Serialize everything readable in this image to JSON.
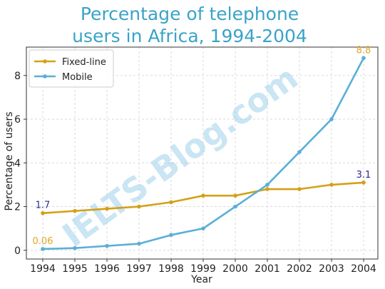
{
  "chart_data": {
    "type": "line",
    "title_lines": [
      "Percentage of telephone",
      "users in Africa, 1994-2004"
    ],
    "xlabel": "Year",
    "ylabel": "Percentage of users",
    "x": [
      1994,
      1995,
      1996,
      1997,
      1998,
      1999,
      2000,
      2001,
      2002,
      2003,
      2004
    ],
    "yticks": [
      0,
      2,
      4,
      6,
      8
    ],
    "ylim": [
      -0.4,
      9.3
    ],
    "grid": true,
    "legend_position": "top-left",
    "series": [
      {
        "name": "Fixed-line",
        "color": "#d4a017",
        "values": [
          1.7,
          1.8,
          1.9,
          2.0,
          2.2,
          2.5,
          2.5,
          2.8,
          2.8,
          3.0,
          3.1
        ]
      },
      {
        "name": "Mobile",
        "color": "#5aafd6",
        "values": [
          0.06,
          0.1,
          0.2,
          0.3,
          0.7,
          1.0,
          2.0,
          3.0,
          4.5,
          6.0,
          8.8
        ]
      }
    ],
    "annotations": [
      {
        "text": "1.7",
        "x": 1994,
        "y": 1.7,
        "color": "#2b2b8f"
      },
      {
        "text": "0.06",
        "x": 1994,
        "y": 0.06,
        "color": "#e0a526"
      },
      {
        "text": "3.1",
        "x": 2004,
        "y": 3.1,
        "color": "#2b2b8f"
      },
      {
        "text": "8.8",
        "x": 2004,
        "y": 8.8,
        "color": "#e0a526"
      }
    ],
    "title_color": "#3aa3c7"
  },
  "watermark": {
    "text": "IELTS-Blog.com",
    "color": "#9fd0ea"
  }
}
